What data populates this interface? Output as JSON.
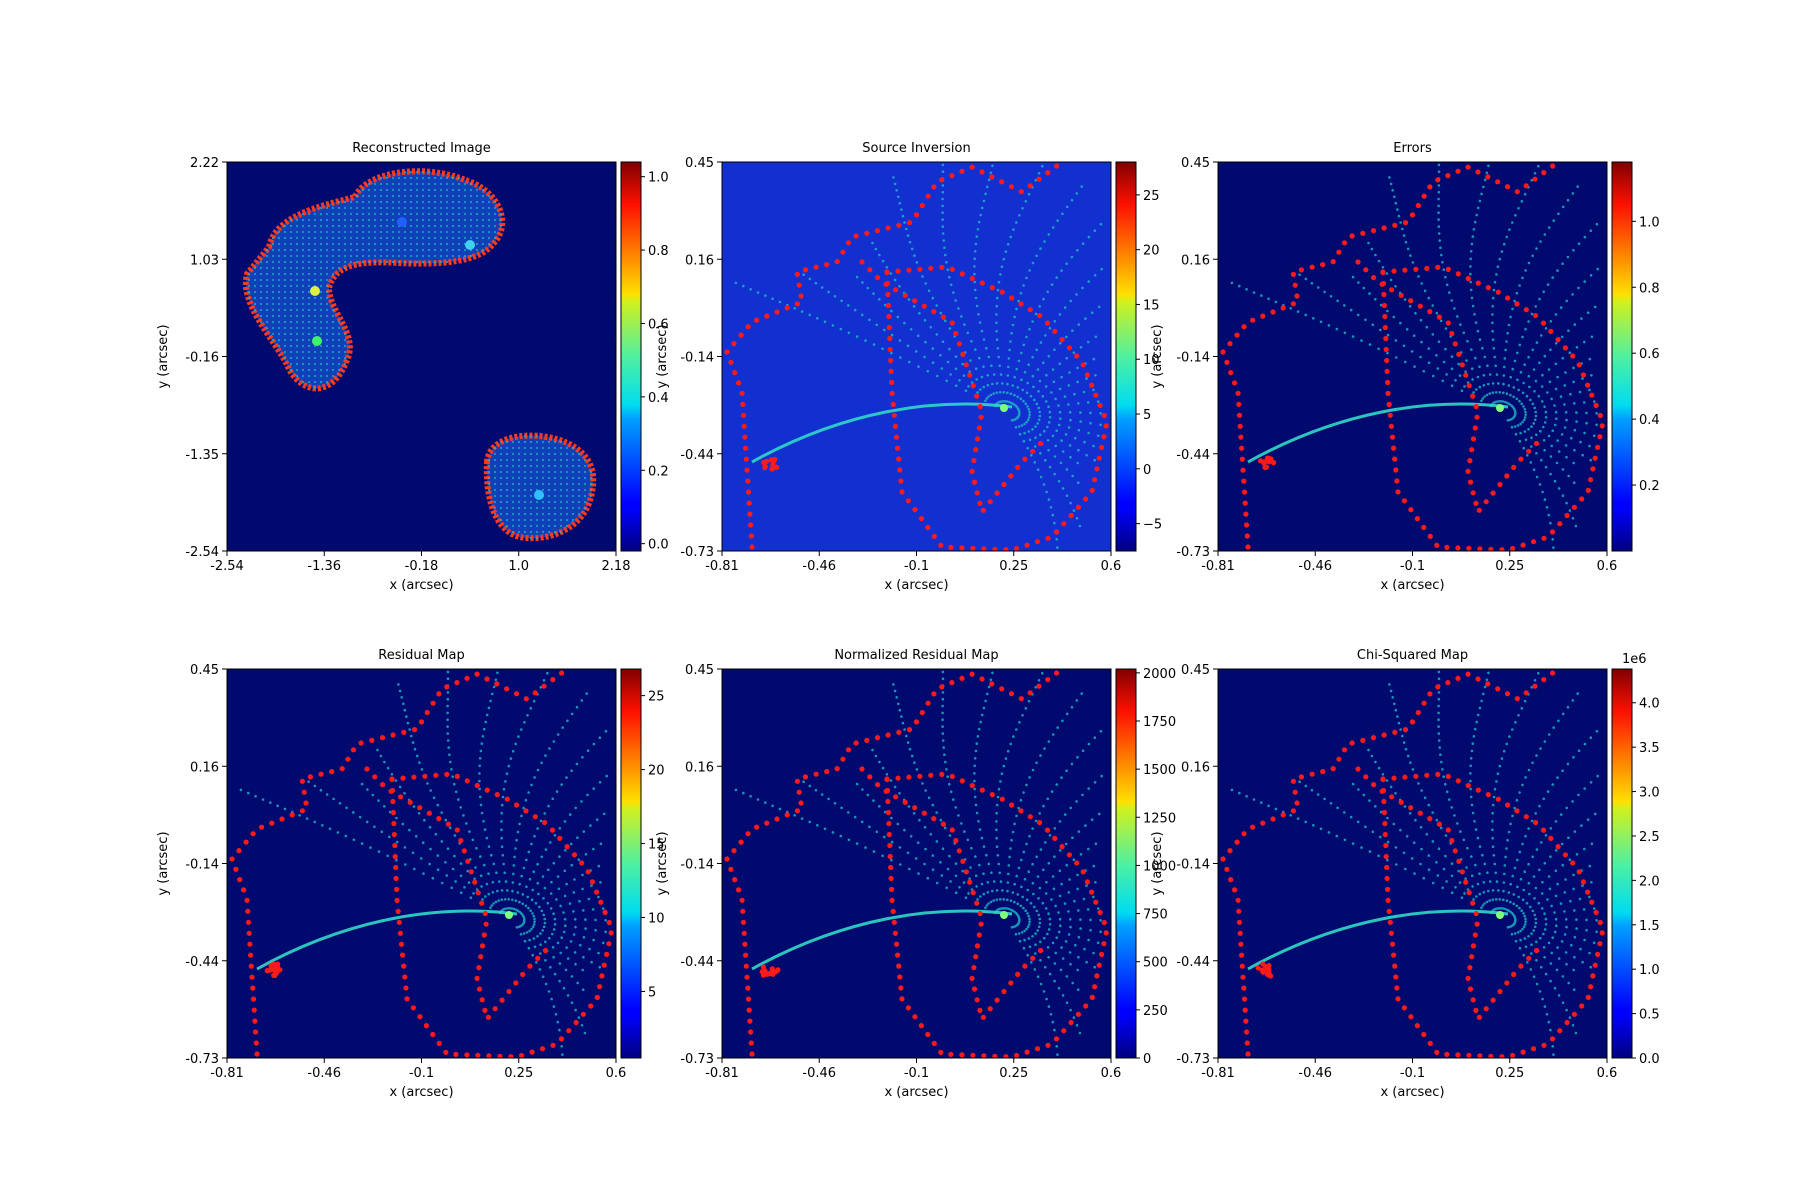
{
  "colors": {
    "cmap": [
      "#00007f",
      "#0000ff",
      "#007fff",
      "#00ffff",
      "#7fff7f",
      "#ffff00",
      "#ff7f00",
      "#ff0000",
      "#7f0000"
    ],
    "border_points": "#ff2200",
    "grid_points": "#1fb7c8",
    "background_low": "#000a6e",
    "source_background": "#1230d0"
  },
  "chart_data": [
    {
      "type": "heatmap",
      "title": "Reconstructed Image",
      "xlabel": "x (arcsec)",
      "ylabel": "y (arcsec)",
      "xlim": [
        -2.54,
        2.18
      ],
      "ylim": [
        -2.54,
        2.22
      ],
      "xticks": [
        "-2.54",
        "-1.36",
        "-0.18",
        "1.0",
        "2.18"
      ],
      "yticks": [
        "2.22",
        "1.03",
        "-0.16",
        "-1.35",
        "-2.54"
      ],
      "colorbar": {
        "min": -0.02,
        "max": 1.04,
        "ticks": [
          "0.0",
          "0.2",
          "0.4",
          "0.6",
          "0.8",
          "1.0"
        ],
        "tick_values": [
          0.0,
          0.2,
          0.4,
          0.6,
          0.8,
          1.0
        ],
        "ylabel": "y (arcsec)",
        "offset": ""
      }
    },
    {
      "type": "heatmap",
      "title": "Source Inversion",
      "xlabel": "x (arcsec)",
      "ylabel": "",
      "xlim": [
        -0.81,
        0.6
      ],
      "ylim": [
        -0.73,
        0.45
      ],
      "xticks": [
        "-0.81",
        "-0.46",
        "-0.1",
        "0.25",
        "0.6"
      ],
      "yticks": [
        "0.45",
        "0.16",
        "-0.14",
        "-0.44",
        "-0.73"
      ],
      "colorbar": {
        "min": -7.5,
        "max": 28,
        "ticks": [
          "−5",
          "0",
          "5",
          "10",
          "15",
          "20",
          "25"
        ],
        "tick_values": [
          -5,
          0,
          5,
          10,
          15,
          20,
          25
        ],
        "ylabel": "y (arcsec)",
        "offset": ""
      }
    },
    {
      "type": "heatmap",
      "title": "Errors",
      "xlabel": "x (arcsec)",
      "ylabel": "",
      "xlim": [
        -0.81,
        0.6
      ],
      "ylim": [
        -0.73,
        0.45
      ],
      "xticks": [
        "-0.81",
        "-0.46",
        "-0.1",
        "0.25",
        "0.6"
      ],
      "yticks": [
        "0.45",
        "0.16",
        "-0.14",
        "-0.44",
        "-0.73"
      ],
      "colorbar": {
        "min": 0.0,
        "max": 1.18,
        "ticks": [
          "0.2",
          "0.4",
          "0.6",
          "0.8",
          "1.0"
        ],
        "tick_values": [
          0.2,
          0.4,
          0.6,
          0.8,
          1.0
        ],
        "ylabel": "",
        "offset": ""
      }
    },
    {
      "type": "heatmap",
      "title": "Residual Map",
      "xlabel": "x (arcsec)",
      "ylabel": "y (arcsec)",
      "xlim": [
        -0.81,
        0.6
      ],
      "ylim": [
        -0.73,
        0.45
      ],
      "xticks": [
        "-0.81",
        "-0.46",
        "-0.1",
        "0.25",
        "0.6"
      ],
      "yticks": [
        "0.45",
        "0.16",
        "-0.14",
        "-0.44",
        "-0.73"
      ],
      "colorbar": {
        "min": 0.5,
        "max": 26.8,
        "ticks": [
          "5",
          "10",
          "15",
          "20",
          "25"
        ],
        "tick_values": [
          5,
          10,
          15,
          20,
          25
        ],
        "ylabel": "y (arcsec)",
        "offset": ""
      }
    },
    {
      "type": "heatmap",
      "title": "Normalized Residual Map",
      "xlabel": "x (arcsec)",
      "ylabel": "",
      "xlim": [
        -0.81,
        0.6
      ],
      "ylim": [
        -0.73,
        0.45
      ],
      "xticks": [
        "-0.81",
        "-0.46",
        "-0.1",
        "0.25",
        "0.6"
      ],
      "yticks": [
        "0.45",
        "0.16",
        "-0.14",
        "-0.44",
        "-0.73"
      ],
      "colorbar": {
        "min": 0,
        "max": 2020,
        "ticks": [
          "0",
          "250",
          "500",
          "750",
          "1000",
          "1250",
          "1500",
          "1750",
          "2000"
        ],
        "tick_values": [
          0,
          250,
          500,
          750,
          1000,
          1250,
          1500,
          1750,
          2000
        ],
        "ylabel": "y (arcsec)",
        "offset": ""
      }
    },
    {
      "type": "heatmap",
      "title": "Chi-Squared Map",
      "xlabel": "x (arcsec)",
      "ylabel": "",
      "xlim": [
        -0.81,
        0.6
      ],
      "ylim": [
        -0.73,
        0.45
      ],
      "xticks": [
        "-0.81",
        "-0.46",
        "-0.1",
        "0.25",
        "0.6"
      ],
      "yticks": [
        "0.45",
        "0.16",
        "-0.14",
        "-0.44",
        "-0.73"
      ],
      "colorbar": {
        "min": 0.0,
        "max": 4.38,
        "ticks": [
          "0.0",
          "0.5",
          "1.0",
          "1.5",
          "2.0",
          "2.5",
          "3.0",
          "3.5",
          "4.0"
        ],
        "tick_values": [
          0.0,
          0.5,
          1.0,
          1.5,
          2.0,
          2.5,
          3.0,
          3.5,
          4.0
        ],
        "ylabel": "",
        "offset": "1e6"
      }
    }
  ]
}
